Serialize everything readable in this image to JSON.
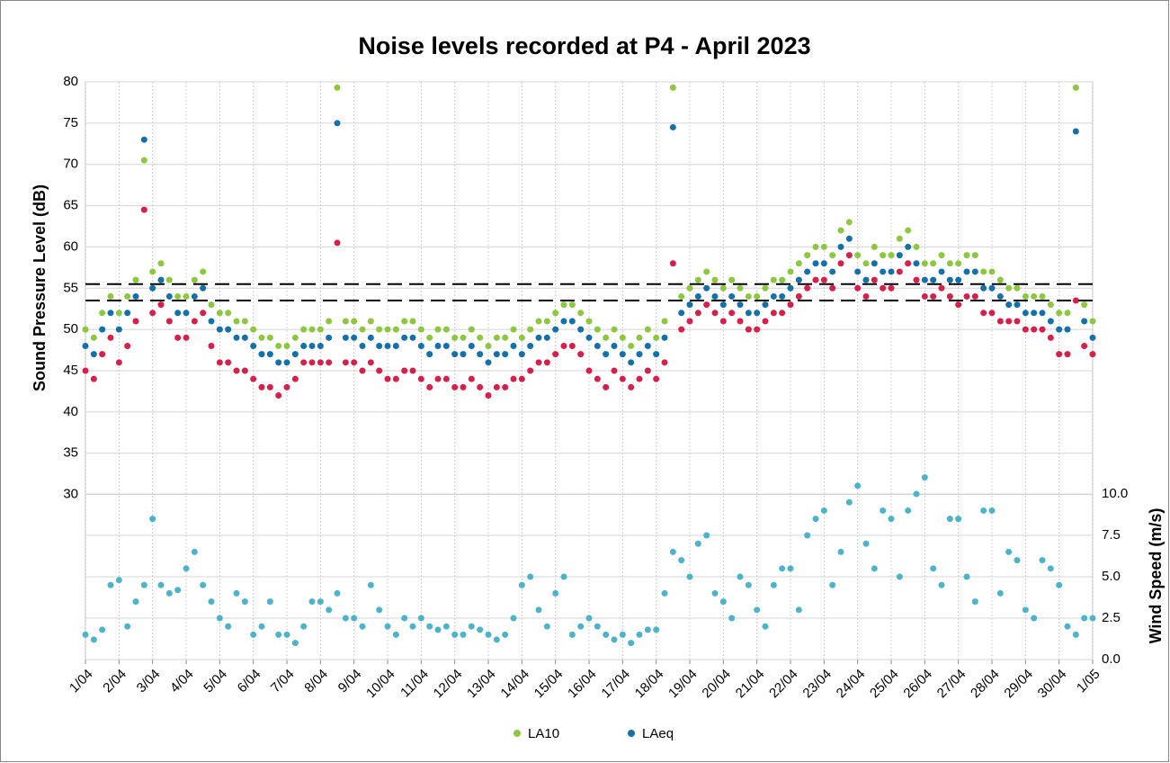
{
  "chart_data": {
    "type": "scatter",
    "title": "Noise levels recorded at P4 - April 2023",
    "ylabel": "Sound Pressure Level (dB)",
    "y2label": "Wind Speed (m/s)",
    "x": [
      0,
      0.25,
      0.5,
      0.75,
      1,
      1.25,
      1.5,
      1.75,
      2,
      2.25,
      2.5,
      2.75,
      3,
      3.25,
      3.5,
      3.75,
      4,
      4.25,
      4.5,
      4.75,
      5,
      5.25,
      5.5,
      5.75,
      6,
      6.25,
      6.5,
      6.75,
      7,
      7.25,
      7.5,
      7.75,
      8,
      8.25,
      8.5,
      8.75,
      9,
      9.25,
      9.5,
      9.75,
      10,
      10.25,
      10.5,
      10.75,
      11,
      11.25,
      11.5,
      11.75,
      12,
      12.25,
      12.5,
      12.75,
      13,
      13.25,
      13.5,
      13.75,
      14,
      14.25,
      14.5,
      14.75,
      15,
      15.25,
      15.5,
      15.75,
      16,
      16.25,
      16.5,
      16.75,
      17,
      17.25,
      17.5,
      17.75,
      18,
      18.25,
      18.5,
      18.75,
      19,
      19.25,
      19.5,
      19.75,
      20,
      20.25,
      20.5,
      20.75,
      21,
      21.25,
      21.5,
      21.75,
      22,
      22.25,
      22.5,
      22.75,
      23,
      23.25,
      23.5,
      23.75,
      24,
      24.25,
      24.5,
      24.75,
      25,
      25.25,
      25.5,
      25.75,
      26,
      26.25,
      26.5,
      26.75,
      27,
      27.25,
      27.5,
      27.75,
      28,
      28.25,
      28.5,
      28.75,
      29,
      29.25,
      29.5,
      29.75,
      30
    ],
    "series": [
      {
        "name": "LA10",
        "color": "#8dc63f",
        "values": [
          50,
          49,
          52,
          54,
          52,
          54,
          56,
          70.5,
          57,
          58,
          56,
          54,
          54,
          56,
          57,
          53,
          52,
          52,
          51,
          51,
          50,
          49,
          49,
          48,
          48,
          49,
          50,
          50,
          50,
          51,
          79.3,
          51,
          51,
          50,
          51,
          50,
          50,
          50,
          51,
          51,
          50,
          49,
          50,
          50,
          49,
          49,
          50,
          49,
          48,
          49,
          49,
          50,
          49,
          50,
          51,
          51,
          52,
          53,
          53,
          52,
          51,
          50,
          49,
          50,
          49,
          48,
          49,
          50,
          49,
          51,
          79.3,
          54,
          55,
          56,
          57,
          56,
          55,
          56,
          55,
          54,
          54,
          55,
          56,
          56,
          57,
          58,
          59,
          60,
          60,
          59,
          62,
          63,
          59,
          58,
          60,
          59,
          59,
          61,
          62,
          60,
          58,
          58,
          59,
          58,
          58,
          59,
          59,
          57,
          57,
          56,
          55,
          55,
          54,
          54,
          54,
          53,
          52,
          52,
          79.3,
          53,
          51
        ]
      },
      {
        "name": "LAeq",
        "color": "#1470a8",
        "values": [
          48,
          47,
          50,
          52,
          50,
          52,
          54,
          73,
          55,
          56,
          54,
          52,
          52,
          54,
          55,
          51,
          50,
          50,
          49,
          49,
          48,
          47,
          47,
          46,
          46,
          47,
          48,
          48,
          48,
          49,
          75,
          49,
          49,
          48,
          49,
          48,
          48,
          48,
          49,
          49,
          48,
          47,
          48,
          48,
          47,
          47,
          48,
          47,
          46,
          47,
          47,
          48,
          47,
          48,
          49,
          49,
          50,
          51,
          51,
          50,
          49,
          48,
          47,
          48,
          47,
          46,
          47,
          48,
          47,
          49,
          74.5,
          52,
          53,
          54,
          55,
          54,
          53,
          54,
          53,
          52,
          52,
          53,
          54,
          54,
          55,
          56,
          57,
          58,
          58,
          57,
          60,
          61,
          57,
          56,
          58,
          57,
          57,
          59,
          60,
          58,
          56,
          56,
          57,
          56,
          56,
          57,
          57,
          55,
          55,
          54,
          53,
          53,
          52,
          52,
          52,
          51,
          50,
          50,
          74,
          51,
          49
        ]
      },
      {
        "color": "#d61f4a",
        "values": [
          45,
          44,
          47,
          49,
          46,
          48,
          51,
          64.5,
          52,
          53,
          51,
          49,
          49,
          51,
          52,
          48,
          46,
          46,
          45,
          45,
          44,
          43,
          43,
          42,
          43,
          44,
          46,
          46,
          46,
          46,
          60.5,
          46,
          46,
          45,
          46,
          45,
          44,
          44,
          45,
          45,
          44,
          43,
          44,
          44,
          43,
          43,
          44,
          43,
          42,
          43,
          43,
          44,
          44,
          45,
          46,
          46,
          47,
          48,
          48,
          47,
          45,
          44,
          43,
          45,
          44,
          43,
          44,
          45,
          44,
          46,
          58,
          50,
          51,
          52,
          53,
          52,
          51,
          52,
          51,
          50,
          50,
          51,
          52,
          52,
          53,
          54,
          55,
          56,
          56,
          55,
          58,
          59,
          55,
          54,
          56,
          55,
          55,
          57,
          58,
          56,
          54,
          54,
          55,
          54,
          53,
          54,
          54,
          52,
          52,
          51,
          51,
          51,
          50,
          50,
          50,
          49,
          47,
          47,
          53.5,
          48,
          47
        ]
      },
      {
        "color": "#4db3c9",
        "axis": "y2",
        "values": [
          1.5,
          1.2,
          1.8,
          4.5,
          4.8,
          2.0,
          3.5,
          4.5,
          8.5,
          4.5,
          4.0,
          4.2,
          5.5,
          6.5,
          4.5,
          3.5,
          2.5,
          2.0,
          4.0,
          3.5,
          1.5,
          2.0,
          3.5,
          1.5,
          1.5,
          1.0,
          2.0,
          3.5,
          3.5,
          3.0,
          4.0,
          2.5,
          2.5,
          2.0,
          4.5,
          3.0,
          2.0,
          1.5,
          2.5,
          2.0,
          2.5,
          2.0,
          1.8,
          2.0,
          1.5,
          1.5,
          2.0,
          1.8,
          1.5,
          1.2,
          1.5,
          2.5,
          4.5,
          5.0,
          3.0,
          2.0,
          4.0,
          5.0,
          1.5,
          2.0,
          2.5,
          2.0,
          1.5,
          1.2,
          1.5,
          1.0,
          1.5,
          1.8,
          1.8,
          4.0,
          6.5,
          6.0,
          5.0,
          7.0,
          7.5,
          4.0,
          3.5,
          2.5,
          5.0,
          4.5,
          3.0,
          2.0,
          4.5,
          5.5,
          5.5,
          3.0,
          7.5,
          8.5,
          9.0,
          4.5,
          6.5,
          9.5,
          10.5,
          7.0,
          5.5,
          9.0,
          8.5,
          5.0,
          9.0,
          10.0,
          11.0,
          5.5,
          4.5,
          8.5,
          8.5,
          5.0,
          3.5,
          9.0,
          9.0,
          4.0,
          6.5,
          6.0,
          3.0,
          2.5,
          6.0,
          5.5,
          4.5,
          2.0,
          1.5,
          2.5,
          2.5
        ]
      }
    ],
    "reference_lines": [
      55.5,
      53.5
    ],
    "xlim": [
      0,
      30
    ],
    "xticks": [
      {
        "value": 0,
        "label": "1/04"
      },
      {
        "value": 1,
        "label": "2/04"
      },
      {
        "value": 2,
        "label": "3/04"
      },
      {
        "value": 3,
        "label": "4/04"
      },
      {
        "value": 4,
        "label": "5/04"
      },
      {
        "value": 5,
        "label": "6/04"
      },
      {
        "value": 6,
        "label": "7/04"
      },
      {
        "value": 7,
        "label": "8/04"
      },
      {
        "value": 8,
        "label": "9/04"
      },
      {
        "value": 9,
        "label": "10/04"
      },
      {
        "value": 10,
        "label": "11/04"
      },
      {
        "value": 11,
        "label": "12/04"
      },
      {
        "value": 12,
        "label": "13/04"
      },
      {
        "value": 13,
        "label": "14/04"
      },
      {
        "value": 14,
        "label": "15/04"
      },
      {
        "value": 15,
        "label": "16/04"
      },
      {
        "value": 16,
        "label": "17/04"
      },
      {
        "value": 17,
        "label": "18/04"
      },
      {
        "value": 18,
        "label": "19/04"
      },
      {
        "value": 19,
        "label": "20/04"
      },
      {
        "value": 20,
        "label": "21/04"
      },
      {
        "value": 21,
        "label": "22/04"
      },
      {
        "value": 22,
        "label": "23/04"
      },
      {
        "value": 23,
        "label": "24/04"
      },
      {
        "value": 24,
        "label": "25/04"
      },
      {
        "value": 25,
        "label": "26/04"
      },
      {
        "value": 26,
        "label": "27/04"
      },
      {
        "value": 27,
        "label": "28/04"
      },
      {
        "value": 28,
        "label": "29/04"
      },
      {
        "value": 29,
        "label": "30/04"
      },
      {
        "value": 30,
        "label": "1/05"
      }
    ],
    "ylim": [
      10,
      80
    ],
    "yticks": [
      30,
      35,
      40,
      45,
      50,
      55,
      60,
      65,
      70,
      75,
      80
    ],
    "y2lim": [
      0,
      34.9
    ],
    "y2ticks": [
      {
        "value": 0,
        "label": "0.0"
      },
      2.5,
      {
        "value": 5,
        "label": "5.0"
      },
      7.5,
      {
        "value": 10,
        "label": "10.0"
      }
    ],
    "grid": true
  }
}
